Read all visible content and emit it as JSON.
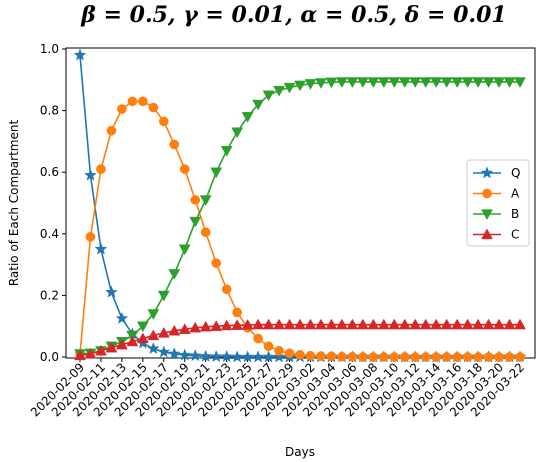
{
  "chart_data": {
    "type": "line",
    "title": "β = 0.5, γ = 0.01, α = 0.5, δ = 0.01",
    "xlabel": "Days",
    "ylabel": "Ratio of Each Compartment",
    "ylim": [
      0,
      1
    ],
    "yticks": [
      "0.0",
      "0.2",
      "0.4",
      "0.6",
      "0.8",
      "1.0"
    ],
    "xtick_labels": [
      "2020-02-09",
      "2020-02-11",
      "2020-02-13",
      "2020-02-15",
      "2020-02-17",
      "2020-02-19",
      "2020-02-21",
      "2020-02-23",
      "2020-02-25",
      "2020-02-27",
      "2020-02-29",
      "2020-03-02",
      "2020-03-04",
      "2020-03-06",
      "2020-03-08",
      "2020-03-10",
      "2020-03-12",
      "2020-03-14",
      "2020-03-16",
      "2020-03-18",
      "2020-03-20",
      "2020-03-22"
    ],
    "x_start": "2020-02-09",
    "x_end": "2020-03-22",
    "legend_position": "center-right",
    "grid": false,
    "series": [
      {
        "name": "Q",
        "color": "#1f77b4",
        "marker": "star",
        "values": [
          0.98,
          0.59,
          0.35,
          0.21,
          0.125,
          0.075,
          0.045,
          0.027,
          0.016,
          0.01,
          0.006,
          0.004,
          0.002,
          0.001,
          0.001,
          0,
          0,
          0,
          0,
          0,
          0,
          0,
          0,
          0,
          0,
          0,
          0,
          0,
          0,
          0,
          0,
          0,
          0,
          0,
          0,
          0,
          0,
          0,
          0,
          0,
          0,
          0,
          0
        ]
      },
      {
        "name": "A",
        "color": "#ff7f0e",
        "marker": "circle",
        "values": [
          0.01,
          0.39,
          0.61,
          0.735,
          0.805,
          0.83,
          0.83,
          0.81,
          0.765,
          0.69,
          0.61,
          0.51,
          0.405,
          0.305,
          0.22,
          0.145,
          0.095,
          0.06,
          0.035,
          0.02,
          0.012,
          0.007,
          0.004,
          0.003,
          0.002,
          0.001,
          0.001,
          0,
          0,
          0,
          0,
          0,
          0,
          0,
          0,
          0,
          0,
          0,
          0,
          0,
          0,
          0,
          0
        ]
      },
      {
        "name": "B",
        "color": "#2ca02c",
        "marker": "triangle-down",
        "values": [
          0.01,
          0.012,
          0.02,
          0.035,
          0.05,
          0.07,
          0.1,
          0.14,
          0.2,
          0.27,
          0.35,
          0.44,
          0.51,
          0.6,
          0.67,
          0.73,
          0.78,
          0.82,
          0.85,
          0.865,
          0.875,
          0.882,
          0.887,
          0.89,
          0.892,
          0.893,
          0.893,
          0.893,
          0.893,
          0.893,
          0.893,
          0.893,
          0.893,
          0.893,
          0.893,
          0.893,
          0.893,
          0.893,
          0.893,
          0.893,
          0.893,
          0.893,
          0.893
        ]
      },
      {
        "name": "C",
        "color": "#d62728",
        "marker": "triangle-up",
        "values": [
          0.005,
          0.01,
          0.02,
          0.03,
          0.04,
          0.05,
          0.06,
          0.07,
          0.078,
          0.085,
          0.09,
          0.095,
          0.098,
          0.1,
          0.102,
          0.103,
          0.104,
          0.105,
          0.105,
          0.105,
          0.105,
          0.105,
          0.105,
          0.105,
          0.105,
          0.105,
          0.105,
          0.105,
          0.105,
          0.105,
          0.105,
          0.105,
          0.105,
          0.105,
          0.105,
          0.105,
          0.105,
          0.105,
          0.105,
          0.105,
          0.105,
          0.105,
          0.105
        ]
      }
    ]
  }
}
